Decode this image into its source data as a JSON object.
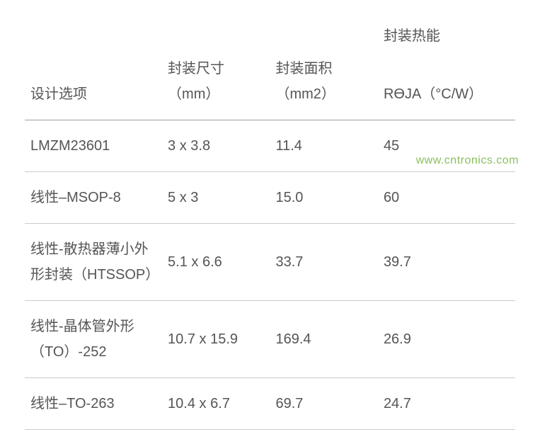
{
  "watermark": "www.cntronics.com",
  "table": {
    "super_header": "封装热能",
    "headers": {
      "col0": "设计选项",
      "col1_line1": "封装尺寸",
      "col1_line2": "（mm）",
      "col2_line1": "封装面积",
      "col2_line2": "（mm2）",
      "col3": "RӨJA（°C/W）"
    },
    "rows": [
      {
        "col0": "LMZM23601",
        "col1": "3 x 3.8",
        "col2": "11.4",
        "col3": "45"
      },
      {
        "col0": "线性–MSOP-8",
        "col1": "5 x 3",
        "col2": "15.0",
        "col3": "60"
      },
      {
        "col0": "线性-散热器薄小外形封装（HTSSOP）",
        "col1": "5.1 x 6.6",
        "col2": "33.7",
        "col3": "39.7"
      },
      {
        "col0": "线性-晶体管外形（TO）-252",
        "col1": "10.7 x 15.9",
        "col2": "169.4",
        "col3": "26.9"
      },
      {
        "col0": "线性–TO-263",
        "col1": "10.4 x 6.7",
        "col2": "69.7",
        "col3": "24.7"
      }
    ]
  },
  "style": {
    "text_color": "#555555",
    "font_size": 20,
    "header_border_color": "#a0a0a0",
    "row_border_color": "#cccccc",
    "background_color": "#ffffff",
    "watermark_color": "#8ac060"
  }
}
